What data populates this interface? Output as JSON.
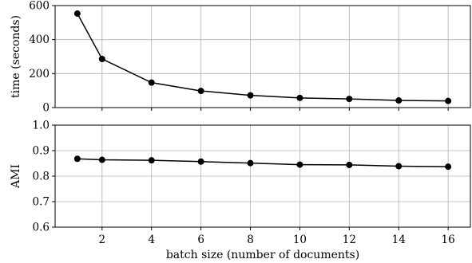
{
  "chart_data": [
    {
      "type": "line",
      "ylabel": "time (seconds)",
      "xlabel": "",
      "x": [
        1,
        2,
        4,
        6,
        8,
        10,
        12,
        14,
        16
      ],
      "series": [
        {
          "values": [
            553,
            286,
            147,
            98,
            72,
            57,
            51,
            42,
            39
          ]
        }
      ],
      "xlim": [
        0.1,
        16.9
      ],
      "ylim": [
        0,
        600
      ],
      "yticks": [
        0,
        200,
        400,
        600
      ],
      "ytick_labels": [
        "0",
        "200",
        "400",
        "600"
      ],
      "xticks": [
        2,
        4,
        6,
        8,
        10,
        12,
        14,
        16
      ],
      "xtick_labels": [],
      "grid": true,
      "line_color": "#000000"
    },
    {
      "type": "line",
      "ylabel": "AMI",
      "xlabel": "batch size (number of documents)",
      "x": [
        1,
        2,
        4,
        6,
        8,
        10,
        12,
        14,
        16
      ],
      "series": [
        {
          "values": [
            0.868,
            0.864,
            0.862,
            0.857,
            0.851,
            0.845,
            0.844,
            0.839,
            0.837
          ]
        }
      ],
      "xlim": [
        0.1,
        16.9
      ],
      "ylim": [
        0.6,
        1.0
      ],
      "yticks": [
        0.6,
        0.7,
        0.8,
        0.9,
        1.0
      ],
      "ytick_labels": [
        "0.6",
        "0.7",
        "0.8",
        "0.9",
        "1.0"
      ],
      "xticks": [
        2,
        4,
        6,
        8,
        10,
        12,
        14,
        16
      ],
      "xtick_labels": [
        "2",
        "4",
        "6",
        "8",
        "10",
        "12",
        "14",
        "16"
      ],
      "grid": true,
      "line_color": "#000000"
    }
  ]
}
